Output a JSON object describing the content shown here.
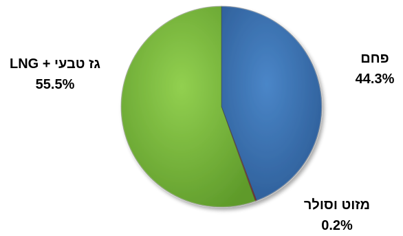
{
  "chart_data": {
    "type": "pie",
    "title": "",
    "slices": [
      {
        "label": "פחם",
        "value": 44.3,
        "display": "44.3%",
        "color": "#4a86c8",
        "dark": "#2c5b95"
      },
      {
        "label": "מזוט וסולר",
        "value": 0.2,
        "display": "0.2%",
        "color": "#c0504d",
        "dark": "#8b2f2d"
      },
      {
        "label": "גז טבעי + LNG",
        "value": 55.5,
        "display": "55.5%",
        "color": "#92d050",
        "dark": "#5e9a2a"
      }
    ],
    "start_angle_deg": 0,
    "direction": "clockwise",
    "legend": "none",
    "data_labels": "outside"
  }
}
